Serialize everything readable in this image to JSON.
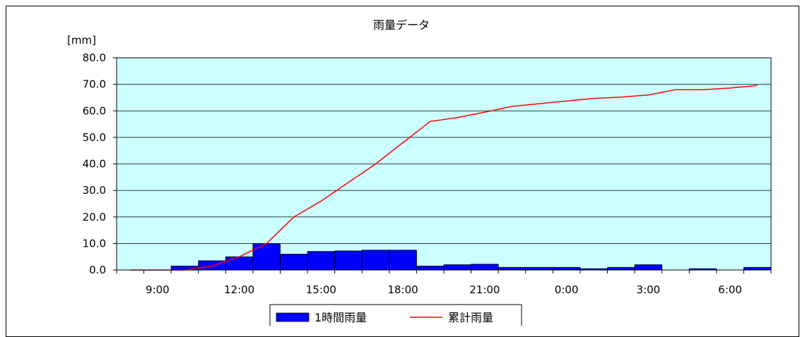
{
  "chart_data": {
    "type": "bar",
    "title": "雨量データ",
    "ylabel": "[mm]",
    "xlabel": "",
    "ylim": [
      0,
      80
    ],
    "yticks": [
      "0.0",
      "10.0",
      "20.0",
      "30.0",
      "40.0",
      "50.0",
      "60.0",
      "70.0",
      "80.0"
    ],
    "xtick_labels": [
      "9:00",
      "12:00",
      "15:00",
      "18:00",
      "21:00",
      "0:00",
      "3:00",
      "6:00"
    ],
    "categories": [
      "8:00",
      "9:00",
      "10:00",
      "11:00",
      "12:00",
      "13:00",
      "14:00",
      "15:00",
      "16:00",
      "17:00",
      "18:00",
      "19:00",
      "20:00",
      "21:00",
      "22:00",
      "23:00",
      "0:00",
      "1:00",
      "2:00",
      "3:00",
      "4:00",
      "5:00",
      "6:00",
      "7:00"
    ],
    "grid": true,
    "legend_position": "bottom",
    "series": [
      {
        "name": "1時間雨量",
        "kind": "bar",
        "color": "#0000ff",
        "values": [
          0,
          0,
          1.5,
          3.5,
          5,
          10,
          6,
          7,
          7.2,
          7.5,
          7.5,
          1.5,
          2,
          2.2,
          1,
          1,
          1,
          0.5,
          1,
          2,
          0,
          0.5,
          0,
          1
        ]
      },
      {
        "name": "累計雨量",
        "kind": "line",
        "color": "#ff0000",
        "values": [
          0,
          0,
          0,
          1.5,
          5,
          10,
          20,
          26,
          33,
          40,
          48,
          56,
          57.5,
          59.5,
          61.7,
          62.7,
          63.7,
          64.7,
          65.2,
          66,
          68,
          68,
          68.6,
          69.6
        ]
      }
    ]
  }
}
